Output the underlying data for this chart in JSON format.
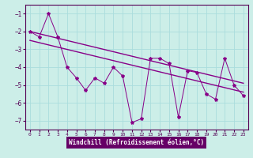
{
  "xlabel": "Windchill (Refroidissement éolien,°C)",
  "bg_color": "#cceee8",
  "grid_color": "#aadddd",
  "line_color": "#880088",
  "xlabel_bg": "#660066",
  "xlabel_fg": "#ffffff",
  "x_values": [
    0,
    1,
    2,
    3,
    4,
    5,
    6,
    7,
    8,
    9,
    10,
    11,
    12,
    13,
    14,
    15,
    16,
    17,
    18,
    19,
    20,
    21,
    22,
    23
  ],
  "series1": [
    -2.0,
    -2.3,
    -1.0,
    -2.3,
    -4.0,
    -4.6,
    -5.3,
    -4.6,
    -4.9,
    -4.0,
    -4.5,
    -7.1,
    -6.9,
    -3.5,
    -3.5,
    -3.8,
    -6.8,
    -4.2,
    -4.3,
    -5.5,
    -5.8,
    -3.5,
    -5.0,
    -5.6
  ],
  "trend1_x": [
    0,
    23
  ],
  "trend1_y": [
    -2.0,
    -4.9
  ],
  "trend2_x": [
    0,
    23
  ],
  "trend2_y": [
    -2.5,
    -5.4
  ],
  "ylim": [
    -7.5,
    -0.5
  ],
  "xlim": [
    -0.5,
    23.5
  ],
  "yticks": [
    -7,
    -6,
    -5,
    -4,
    -3,
    -2,
    -1
  ],
  "xticks": [
    0,
    1,
    2,
    3,
    4,
    5,
    6,
    7,
    8,
    9,
    10,
    11,
    12,
    13,
    14,
    15,
    16,
    17,
    18,
    19,
    20,
    21,
    22,
    23
  ]
}
